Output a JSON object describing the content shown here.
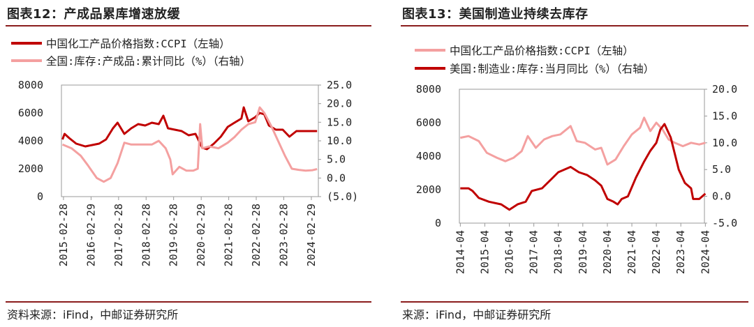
{
  "panels": [
    {
      "title": "图表12：产成品累库增速放缓",
      "source": "资料来源：iFind，中邮证券研究所"
    },
    {
      "title": "图表13：美国制造业持续去库存",
      "source": "来源：iFind，中邮证券研究所"
    }
  ],
  "colors": {
    "dark_red": "#c00000",
    "light_pink": "#f4a0a0",
    "title_rule": "#8a1c1c",
    "negative_label": "#e00000"
  },
  "chart_data": [
    {
      "type": "line",
      "x_ticks": [
        "2015-02-28",
        "2016-02-29",
        "2017-02-28",
        "2018-02-28",
        "2019-02-28",
        "2020-02-29",
        "2021-02-28",
        "2022-02-28",
        "2023-02-28",
        "2024-02-29"
      ],
      "x_range": [
        "2015-02-01",
        "2024-06-01"
      ],
      "y_left": {
        "ticks": [
          "0",
          "2000",
          "4000",
          "6000",
          "8000"
        ],
        "range": [
          0,
          8000
        ]
      },
      "y_right": {
        "ticks": [
          "(5.0)",
          "0.0",
          "5.0",
          "10.0",
          "15.0",
          "20.0",
          "25.0"
        ],
        "range": [
          -5,
          25
        ]
      },
      "legend_position": "top-left",
      "series": [
        {
          "name": "中国化工产品价格指数:CCPI（左轴）",
          "axis": "left",
          "color": "#c00000",
          "points": [
            [
              "2015-02",
              4100
            ],
            [
              "2015-03",
              4500
            ],
            [
              "2015-05",
              4200
            ],
            [
              "2015-08",
              3800
            ],
            [
              "2015-12",
              3600
            ],
            [
              "2016-03",
              3700
            ],
            [
              "2016-06",
              3800
            ],
            [
              "2016-09",
              4100
            ],
            [
              "2016-12",
              4900
            ],
            [
              "2017-02",
              5300
            ],
            [
              "2017-05",
              4500
            ],
            [
              "2017-08",
              4900
            ],
            [
              "2017-11",
              5200
            ],
            [
              "2018-02",
              5100
            ],
            [
              "2018-05",
              5300
            ],
            [
              "2018-08",
              5200
            ],
            [
              "2018-10",
              5800
            ],
            [
              "2018-12",
              4900
            ],
            [
              "2019-03",
              4800
            ],
            [
              "2019-06",
              4700
            ],
            [
              "2019-09",
              4400
            ],
            [
              "2019-12",
              4500
            ],
            [
              "2020-03",
              3500
            ],
            [
              "2020-05",
              3400
            ],
            [
              "2020-08",
              3800
            ],
            [
              "2020-11",
              4300
            ],
            [
              "2021-02",
              5000
            ],
            [
              "2021-05",
              5300
            ],
            [
              "2021-08",
              5600
            ],
            [
              "2021-09",
              6400
            ],
            [
              "2021-11",
              5400
            ],
            [
              "2022-02",
              5700
            ],
            [
              "2022-04",
              6000
            ],
            [
              "2022-06",
              5900
            ],
            [
              "2022-08",
              5100
            ],
            [
              "2022-11",
              4800
            ],
            [
              "2023-02",
              4800
            ],
            [
              "2023-05",
              4300
            ],
            [
              "2023-08",
              4700
            ],
            [
              "2023-11",
              4700
            ],
            [
              "2024-02",
              4700
            ],
            [
              "2024-05",
              4700
            ]
          ]
        },
        {
          "name": "全国:库存:产成品:累计同比（%）（右轴）",
          "axis": "right",
          "color": "#f4a0a0",
          "points": [
            [
              "2015-02",
              9.0
            ],
            [
              "2015-06",
              8.0
            ],
            [
              "2015-10",
              6.0
            ],
            [
              "2016-01",
              3.5
            ],
            [
              "2016-05",
              0.0
            ],
            [
              "2016-08",
              -1.0
            ],
            [
              "2016-11",
              0.0
            ],
            [
              "2017-02",
              4.0
            ],
            [
              "2017-05",
              9.5
            ],
            [
              "2017-08",
              9.0
            ],
            [
              "2017-11",
              9.0
            ],
            [
              "2018-02",
              9.0
            ],
            [
              "2018-05",
              9.0
            ],
            [
              "2018-08",
              10.0
            ],
            [
              "2018-11",
              8.0
            ],
            [
              "2019-01",
              5.0
            ],
            [
              "2019-02",
              1.0
            ],
            [
              "2019-05",
              3.0
            ],
            [
              "2019-08",
              2.0
            ],
            [
              "2019-11",
              2.0
            ],
            [
              "2020-01",
              2.5
            ],
            [
              "2020-02",
              14.5
            ],
            [
              "2020-03",
              8.0
            ],
            [
              "2020-06",
              8.5
            ],
            [
              "2020-10",
              8.0
            ],
            [
              "2021-02",
              9.5
            ],
            [
              "2021-05",
              11.0
            ],
            [
              "2021-08",
              13.0
            ],
            [
              "2021-11",
              14.5
            ],
            [
              "2022-02",
              15.0
            ],
            [
              "2022-04",
              19.0
            ],
            [
              "2022-06",
              17.5
            ],
            [
              "2022-09",
              14.0
            ],
            [
              "2022-12",
              10.0
            ],
            [
              "2023-03",
              6.0
            ],
            [
              "2023-06",
              2.5
            ],
            [
              "2023-09",
              2.2
            ],
            [
              "2023-12",
              2.0
            ],
            [
              "2024-03",
              2.1
            ],
            [
              "2024-05",
              2.4
            ]
          ]
        }
      ]
    },
    {
      "type": "line",
      "x_ticks": [
        "2014-04",
        "2015-04",
        "2016-04",
        "2017-04",
        "2018-04",
        "2019-04",
        "2020-04",
        "2021-04",
        "2022-04",
        "2023-04",
        "2024-04"
      ],
      "x_range": [
        "2014-04-01",
        "2024-04-01"
      ],
      "y_left": {
        "ticks": [
          "0",
          "2000",
          "4000",
          "6000",
          "8000"
        ],
        "range": [
          0,
          8000
        ]
      },
      "y_right": {
        "ticks": [
          "-5.0",
          "0.0",
          "5.0",
          "10.0",
          "15.0",
          "20.0"
        ],
        "range": [
          -5,
          20
        ]
      },
      "legend_position": "top-left",
      "series": [
        {
          "name": "中国化工产品价格指数:CCPI（左轴）",
          "axis": "left",
          "color": "#f4a0a0",
          "points": [
            [
              "2014-04",
              5100
            ],
            [
              "2014-08",
              5200
            ],
            [
              "2015-01",
              4900
            ],
            [
              "2015-05",
              4200
            ],
            [
              "2015-10",
              3900
            ],
            [
              "2016-02",
              3700
            ],
            [
              "2016-06",
              3900
            ],
            [
              "2016-10",
              4300
            ],
            [
              "2017-01",
              5200
            ],
            [
              "2017-05",
              4500
            ],
            [
              "2017-09",
              5000
            ],
            [
              "2018-01",
              5200
            ],
            [
              "2018-05",
              5300
            ],
            [
              "2018-10",
              5800
            ],
            [
              "2019-01",
              4900
            ],
            [
              "2019-05",
              4800
            ],
            [
              "2019-10",
              4400
            ],
            [
              "2020-01",
              4500
            ],
            [
              "2020-04",
              3500
            ],
            [
              "2020-08",
              3800
            ],
            [
              "2020-12",
              4600
            ],
            [
              "2021-04",
              5300
            ],
            [
              "2021-08",
              5700
            ],
            [
              "2021-10",
              6300
            ],
            [
              "2022-01",
              5500
            ],
            [
              "2022-04",
              6000
            ],
            [
              "2022-07",
              5600
            ],
            [
              "2022-10",
              5000
            ],
            [
              "2023-01",
              4800
            ],
            [
              "2023-05",
              4600
            ],
            [
              "2023-09",
              4800
            ],
            [
              "2024-01",
              4700
            ],
            [
              "2024-04",
              4800
            ]
          ]
        },
        {
          "name": "美国:制造业:库存:当月同比（%）（右轴）",
          "axis": "right",
          "color": "#c00000",
          "points": [
            [
              "2014-04",
              1.5
            ],
            [
              "2014-08",
              1.5
            ],
            [
              "2014-10",
              1.0
            ],
            [
              "2015-01",
              -0.3
            ],
            [
              "2015-06",
              -1.0
            ],
            [
              "2015-12",
              -1.5
            ],
            [
              "2016-04",
              -2.5
            ],
            [
              "2016-08",
              -1.5
            ],
            [
              "2016-12",
              -1.0
            ],
            [
              "2017-03",
              1.0
            ],
            [
              "2017-08",
              1.5
            ],
            [
              "2017-12",
              3.0
            ],
            [
              "2018-04",
              4.5
            ],
            [
              "2018-10",
              5.5
            ],
            [
              "2019-02",
              4.5
            ],
            [
              "2019-06",
              4.0
            ],
            [
              "2019-10",
              3.0
            ],
            [
              "2020-01",
              2.0
            ],
            [
              "2020-04",
              -0.5
            ],
            [
              "2020-07",
              -1.0
            ],
            [
              "2020-09",
              -1.5
            ],
            [
              "2020-11",
              -0.5
            ],
            [
              "2021-02",
              0.0
            ],
            [
              "2021-06",
              3.5
            ],
            [
              "2021-10",
              6.5
            ],
            [
              "2022-01",
              8.5
            ],
            [
              "2022-04",
              10.0
            ],
            [
              "2022-06",
              12.5
            ],
            [
              "2022-08",
              13.5
            ],
            [
              "2022-11",
              11.0
            ],
            [
              "2023-03",
              5.0
            ],
            [
              "2023-06",
              2.5
            ],
            [
              "2023-09",
              1.5
            ],
            [
              "2023-10",
              -0.5
            ],
            [
              "2024-01",
              -0.5
            ],
            [
              "2024-04",
              0.5
            ]
          ]
        }
      ]
    }
  ]
}
